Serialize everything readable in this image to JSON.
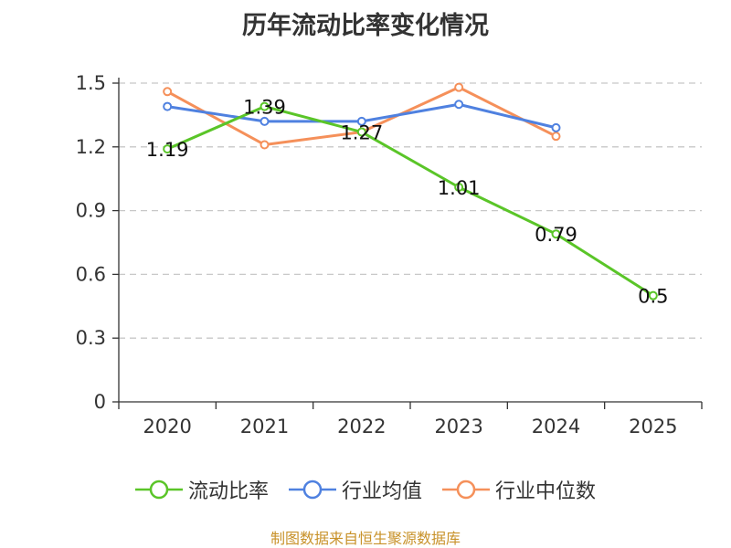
{
  "title": "历年流动比率变化情况",
  "source_text": "制图数据来自恒生聚源数据库",
  "chart_data": {
    "type": "line",
    "title": "历年流动比率变化情况",
    "categories": [
      "2020",
      "2021",
      "2022",
      "2023",
      "2024",
      "2025"
    ],
    "ylim": [
      0,
      1.5
    ],
    "yticks": [
      0,
      0.3,
      0.6,
      0.9,
      1.2,
      1.5
    ],
    "ytick_labels": [
      "0",
      "0.3",
      "0.6",
      "0.9",
      "1.2",
      "1.5"
    ],
    "grid": true,
    "legend_position": "bottom",
    "series": [
      {
        "name": "流动比率",
        "color": "#5ac528",
        "values": [
          1.19,
          1.39,
          1.27,
          1.01,
          0.79,
          0.5
        ],
        "labels": [
          "1.19",
          "1.39",
          "1.27",
          "1.01",
          "0.79",
          "0.5"
        ]
      },
      {
        "name": "行业均值",
        "color": "#4f81e0",
        "values": [
          1.39,
          1.32,
          1.32,
          1.4,
          1.29,
          null
        ]
      },
      {
        "name": "行业中位数",
        "color": "#f5905a",
        "values": [
          1.46,
          1.21,
          1.27,
          1.48,
          1.25,
          null
        ]
      }
    ]
  }
}
